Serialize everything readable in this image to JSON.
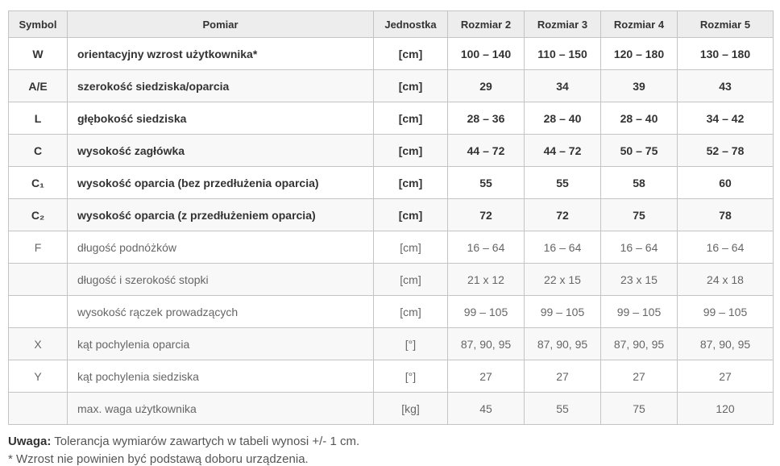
{
  "table": {
    "headers": [
      "Symbol",
      "Pomiar",
      "Jednostka",
      "Rozmiar 2",
      "Rozmiar 3",
      "Rozmiar 4",
      "Rozmiar 5"
    ],
    "emphasized_rows": [
      0,
      1,
      2,
      3,
      4,
      5
    ],
    "rows": [
      {
        "symbol": "W",
        "pomiar": "orientacyjny wzrost użytkownika*",
        "jednostka": "[cm]",
        "values": [
          "100 – 140",
          "110 – 150",
          "120 – 180",
          "130 – 180"
        ]
      },
      {
        "symbol": "A/E",
        "pomiar": "szerokość siedziska/oparcia",
        "jednostka": "[cm]",
        "values": [
          "29",
          "34",
          "39",
          "43"
        ]
      },
      {
        "symbol": "L",
        "pomiar": "głębokość siedziska",
        "jednostka": "[cm]",
        "values": [
          "28 – 36",
          "28 – 40",
          "28 – 40",
          "34 – 42"
        ]
      },
      {
        "symbol": "C",
        "pomiar": "wysokość zagłówka",
        "jednostka": "[cm]",
        "values": [
          "44 – 72",
          "44 – 72",
          "50 – 75",
          "52 – 78"
        ]
      },
      {
        "symbol": "C₁",
        "pomiar": "wysokość oparcia (bez przedłużenia oparcia)",
        "jednostka": "[cm]",
        "values": [
          "55",
          "55",
          "58",
          "60"
        ]
      },
      {
        "symbol": "C₂",
        "pomiar": "wysokość oparcia (z przedłużeniem oparcia)",
        "jednostka": "[cm]",
        "values": [
          "72",
          "72",
          "75",
          "78"
        ]
      },
      {
        "symbol": "F",
        "pomiar": "długość podnóżków",
        "jednostka": "[cm]",
        "values": [
          "16 – 64",
          "16 – 64",
          "16 – 64",
          "16 – 64"
        ]
      },
      {
        "symbol": "",
        "pomiar": "długość i szerokość stopki",
        "jednostka": "[cm]",
        "values": [
          "21 x 12",
          "22 x 15",
          "23 x 15",
          "24 x 18"
        ]
      },
      {
        "symbol": "",
        "pomiar": "wysokość rączek prowadzących",
        "jednostka": "[cm]",
        "values": [
          "99 – 105",
          "99 – 105",
          "99 – 105",
          "99 – 105"
        ]
      },
      {
        "symbol": "X",
        "pomiar": "kąt pochylenia oparcia",
        "jednostka": "[°]",
        "values": [
          "87, 90, 95",
          "87, 90, 95",
          "87, 90, 95",
          "87, 90, 95"
        ]
      },
      {
        "symbol": "Y",
        "pomiar": "kąt pochylenia siedziska",
        "jednostka": "[°]",
        "values": [
          "27",
          "27",
          "27",
          "27"
        ]
      },
      {
        "symbol": "",
        "pomiar": "max. waga użytkownika",
        "jednostka": "[kg]",
        "values": [
          "45",
          "55",
          "75",
          "120"
        ]
      }
    ]
  },
  "notes": {
    "note_label": "Uwaga:",
    "note_text": " Tolerancja wymiarów zawartych w tabeli wynosi +/- 1 cm.",
    "footnote": "* Wzrost nie powinien być podstawą doboru urządzenia."
  }
}
